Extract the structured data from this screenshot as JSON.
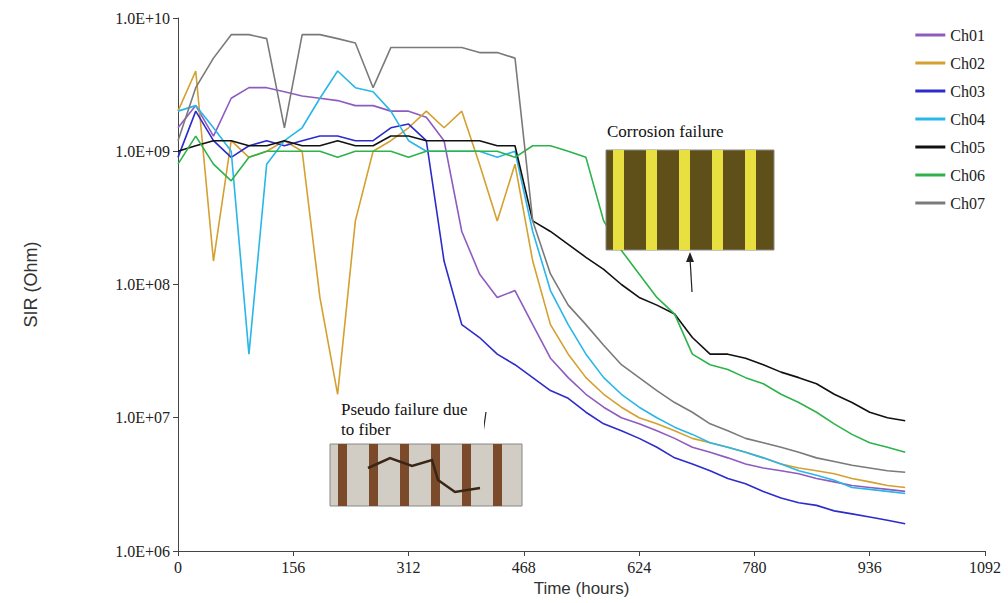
{
  "chart_data": {
    "type": "line",
    "xlabel": "Time (hours)",
    "ylabel": "SIR (Ohm)",
    "log": "y",
    "grid": false,
    "legend": "upper right",
    "xlim": [
      0,
      1092
    ],
    "xticks": [
      0,
      156,
      312,
      468,
      624,
      780,
      936,
      1092
    ],
    "ylim": [
      1000000,
      10000000000
    ],
    "yticks": [
      {
        "value": 1000000,
        "label": "1.0E+06"
      },
      {
        "value": 10000000,
        "label": "1.0E+07"
      },
      {
        "value": 100000000,
        "label": "1.0E+08"
      },
      {
        "value": 1000000000,
        "label": "1.0E+09"
      },
      {
        "value": 10000000000,
        "label": "1.0E+10"
      }
    ],
    "annotations": [
      "Corrosion failure",
      "Pseudo failure due to fiber"
    ],
    "x": [
      0,
      24,
      48,
      72,
      96,
      120,
      144,
      168,
      192,
      216,
      240,
      264,
      288,
      312,
      336,
      360,
      384,
      408,
      432,
      456,
      480,
      504,
      528,
      552,
      576,
      600,
      624,
      648,
      672,
      696,
      720,
      744,
      768,
      792,
      816,
      840,
      864,
      888,
      912,
      936,
      960,
      984
    ],
    "series": [
      {
        "name": "Ch01",
        "color": "#8e5bbf",
        "values": [
          1500000000.0,
          2200000000.0,
          1300000000.0,
          2500000000.0,
          3000000000.0,
          3000000000.0,
          2800000000.0,
          2600000000.0,
          2500000000.0,
          2400000000.0,
          2200000000.0,
          2200000000.0,
          2000000000.0,
          2000000000.0,
          1800000000.0,
          1200000000.0,
          250000000.0,
          120000000.0,
          80000000.0,
          90000000.0,
          50000000.0,
          28000000.0,
          20000000.0,
          15000000.0,
          12000000.0,
          10000000.0,
          9000000.0,
          8000000.0,
          7000000.0,
          6000000.0,
          5500000.0,
          5000000.0,
          4500000.0,
          4200000.0,
          4000000.0,
          3800000.0,
          3500000.0,
          3300000.0,
          3100000.0,
          3000000.0,
          2900000.0,
          2800000.0
        ]
      },
      {
        "name": "Ch02",
        "color": "#d4a030",
        "values": [
          2000000000.0,
          4000000000.0,
          150000000.0,
          1200000000.0,
          900000000.0,
          1000000000.0,
          1200000000.0,
          1000000000.0,
          80000000.0,
          15000000.0,
          300000000.0,
          1000000000.0,
          1200000000.0,
          1500000000.0,
          2000000000.0,
          1500000000.0,
          2000000000.0,
          800000000.0,
          300000000.0,
          800000000.0,
          150000000.0,
          50000000.0,
          30000000.0,
          20000000.0,
          15000000.0,
          12000000.0,
          10000000.0,
          9000000.0,
          8000000.0,
          7000000.0,
          6500000.0,
          6000000.0,
          5500000.0,
          5000000.0,
          4500000.0,
          4200000.0,
          4000000.0,
          3800000.0,
          3500000.0,
          3300000.0,
          3100000.0,
          3000000.0
        ]
      },
      {
        "name": "Ch03",
        "color": "#2c2ccc",
        "values": [
          900000000.0,
          2000000000.0,
          1200000000.0,
          900000000.0,
          1100000000.0,
          1200000000.0,
          1100000000.0,
          1200000000.0,
          1300000000.0,
          1300000000.0,
          1200000000.0,
          1200000000.0,
          1500000000.0,
          1600000000.0,
          1200000000.0,
          150000000.0,
          50000000.0,
          40000000.0,
          30000000.0,
          25000000.0,
          20000000.0,
          16000000.0,
          14000000.0,
          11000000.0,
          9000000.0,
          8000000.0,
          7000000.0,
          6000000.0,
          5000000.0,
          4500000.0,
          4000000.0,
          3500000.0,
          3200000.0,
          2800000.0,
          2500000.0,
          2300000.0,
          2200000.0,
          2000000.0,
          1900000.0,
          1800000.0,
          1700000.0,
          1600000.0
        ]
      },
      {
        "name": "Ch04",
        "color": "#29b6e8",
        "values": [
          2000000000.0,
          2200000000.0,
          1500000000.0,
          1000000000.0,
          30000000.0,
          800000000.0,
          1200000000.0,
          1500000000.0,
          2500000000.0,
          4000000000.0,
          3000000000.0,
          2800000000.0,
          2000000000.0,
          1200000000.0,
          1000000000.0,
          1000000000.0,
          1000000000.0,
          1000000000.0,
          900000000.0,
          1000000000.0,
          250000000.0,
          90000000.0,
          50000000.0,
          30000000.0,
          20000000.0,
          15000000.0,
          12000000.0,
          10000000.0,
          8500000.0,
          7500000.0,
          6500000.0,
          6000000.0,
          5500000.0,
          5000000.0,
          4500000.0,
          4000000.0,
          3700000.0,
          3400000.0,
          3000000.0,
          2900000.0,
          2800000.0,
          2700000.0
        ]
      },
      {
        "name": "Ch05",
        "color": "#111111",
        "values": [
          1000000000.0,
          1100000000.0,
          1200000000.0,
          1200000000.0,
          1100000000.0,
          1100000000.0,
          1200000000.0,
          1100000000.0,
          1100000000.0,
          1200000000.0,
          1100000000.0,
          1100000000.0,
          1300000000.0,
          1300000000.0,
          1200000000.0,
          1200000000.0,
          1200000000.0,
          1200000000.0,
          1100000000.0,
          1100000000.0,
          300000000.0,
          250000000.0,
          200000000.0,
          160000000.0,
          130000000.0,
          100000000.0,
          80000000.0,
          70000000.0,
          60000000.0,
          40000000.0,
          30000000.0,
          30000000.0,
          28000000.0,
          25000000.0,
          22000000.0,
          20000000.0,
          18000000.0,
          15000000.0,
          13000000.0,
          11000000.0,
          10000000.0,
          9500000.0
        ]
      },
      {
        "name": "Ch06",
        "color": "#2db34a",
        "values": [
          800000000.0,
          1300000000.0,
          800000000.0,
          600000000.0,
          900000000.0,
          1000000000.0,
          1000000000.0,
          1000000000.0,
          1000000000.0,
          900000000.0,
          1000000000.0,
          1000000000.0,
          1000000000.0,
          900000000.0,
          1000000000.0,
          1000000000.0,
          1000000000.0,
          1000000000.0,
          1000000000.0,
          900000000.0,
          1100000000.0,
          1100000000.0,
          1000000000.0,
          900000000.0,
          300000000.0,
          180000000.0,
          120000000.0,
          80000000.0,
          60000000.0,
          30000000.0,
          25000000.0,
          23000000.0,
          20000000.0,
          18000000.0,
          15000000.0,
          13000000.0,
          11000000.0,
          9000000.0,
          7500000.0,
          6500000.0,
          6000000.0,
          5500000.0
        ]
      },
      {
        "name": "Ch07",
        "color": "#7a7a7a",
        "values": [
          1200000000.0,
          3000000000.0,
          5000000000.0,
          7500000000.0,
          7500000000.0,
          7000000000.0,
          1500000000.0,
          7500000000.0,
          7500000000.0,
          7000000000.0,
          6500000000.0,
          3000000000.0,
          6000000000.0,
          6000000000.0,
          6000000000.0,
          6000000000.0,
          6000000000.0,
          5500000000.0,
          5500000000.0,
          5000000000.0,
          300000000.0,
          120000000.0,
          70000000.0,
          50000000.0,
          35000000.0,
          25000000.0,
          20000000.0,
          16000000.0,
          13000000.0,
          11000000.0,
          9000000.0,
          8000000.0,
          7000000.0,
          6500000.0,
          6000000.0,
          5500000.0,
          5000000.0,
          4700000.0,
          4400000.0,
          4200000.0,
          4000000.0,
          3900000.0
        ]
      }
    ]
  }
}
